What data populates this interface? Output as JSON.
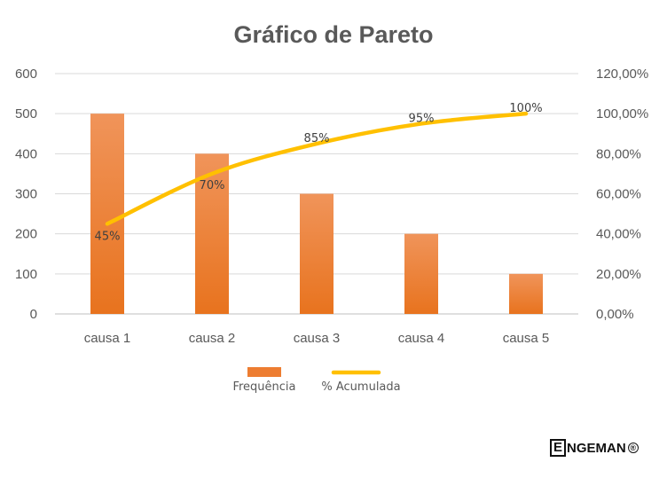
{
  "chart_data": {
    "type": "bar",
    "title": "Gráfico de Pareto",
    "categories": [
      "causa 1",
      "causa 2",
      "causa 3",
      "causa 4",
      "causa 5"
    ],
    "series": [
      {
        "name": "Frequência",
        "type": "bar",
        "axis": "left",
        "values": [
          500,
          400,
          300,
          200,
          100
        ],
        "color": "#ED7D31"
      },
      {
        "name": "% Acumulada",
        "type": "line",
        "axis": "right",
        "values": [
          45,
          70,
          85,
          95,
          100
        ],
        "data_labels": [
          "45%",
          "70%",
          "85%",
          "95%",
          "100%"
        ],
        "color": "#FFC000"
      }
    ],
    "y_left": {
      "ylim": [
        0,
        600
      ],
      "ticks": [
        "0",
        "100",
        "200",
        "300",
        "400",
        "500",
        "600"
      ]
    },
    "y_right": {
      "ylim": [
        0,
        120
      ],
      "ticks": [
        "0,00%",
        "20,00%",
        "40,00%",
        "60,00%",
        "80,00%",
        "100,00%",
        "120,00%"
      ]
    },
    "grid": true,
    "legend": "bottom"
  },
  "logo": {
    "letter": "E",
    "rest": "NGEMAN",
    "reg": "®"
  }
}
